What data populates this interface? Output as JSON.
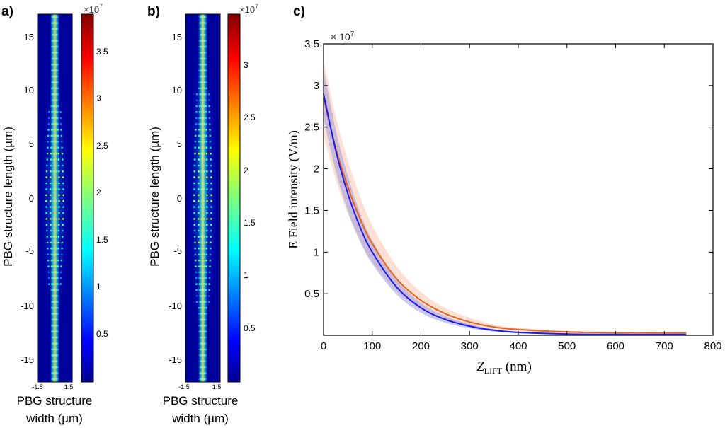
{
  "panels": {
    "a": {
      "label": "a)",
      "ylabel": "PBG structure length (µm)",
      "xlabel_line1": "PBG structure",
      "xlabel_line2": "width (µm)",
      "yticks": [
        "15",
        "10",
        "5",
        "0",
        "-5",
        "-10",
        "-15"
      ],
      "xticks": [
        "-1.5",
        "1.5"
      ],
      "colorbar_exponent": "×10",
      "colorbar_exponent_power": "7",
      "colorbar_ticks": [
        "3.5",
        "3",
        "2.5",
        "2",
        "1.5",
        "1",
        "0.5"
      ]
    },
    "b": {
      "label": "b)",
      "ylabel": "PBG structure length (µm)",
      "xlabel_line1": "PBG structure",
      "xlabel_line2": "width (µm)",
      "yticks": [
        "15",
        "10",
        "5",
        "0",
        "-5",
        "-10",
        "-15"
      ],
      "xticks": [
        "-1.5",
        "1.5"
      ],
      "colorbar_exponent": "×10",
      "colorbar_exponent_power": "7",
      "colorbar_ticks": [
        "3",
        "2.5",
        "2",
        "1.5",
        "1",
        "0.5"
      ]
    },
    "c": {
      "label": "c)",
      "exponent": "× 10",
      "exponent_power": "7",
      "ylabel": "E Field intensity (V/m)",
      "xlabel_main": "Z",
      "xlabel_sub": "LIFT",
      "xlabel_unit": " (nm)"
    }
  },
  "chart_data": [
    {
      "type": "heatmap",
      "panel": "a",
      "title": "",
      "xlabel": "PBG structure width (µm)",
      "ylabel": "PBG structure length (µm)",
      "xlim": [
        -1.5,
        1.5
      ],
      "ylim": [
        -17,
        17
      ],
      "colorbar_range": [
        0.1,
        3.9
      ],
      "colorbar_scale": "x10^7",
      "description_values": {
        "max_intensity": 3.9,
        "peak_region_y": [
          -8,
          8
        ]
      }
    },
    {
      "type": "heatmap",
      "panel": "b",
      "title": "",
      "xlabel": "PBG structure width (µm)",
      "ylabel": "PBG structure length (µm)",
      "xlim": [
        -1.5,
        1.5
      ],
      "ylim": [
        -17,
        17
      ],
      "colorbar_range": [
        0.1,
        3.5
      ],
      "colorbar_scale": "x10^7",
      "description_values": {
        "max_intensity": 3.5,
        "peak_region_y": [
          -10,
          10
        ]
      }
    },
    {
      "type": "line",
      "panel": "c",
      "title": "",
      "xlabel": "Z_LIFT (nm)",
      "ylabel": "E Field intensity (V/m)",
      "xlim": [
        0,
        800
      ],
      "ylim": [
        0,
        3.5
      ],
      "y_scale": "x10^7",
      "xticks": [
        0,
        100,
        200,
        300,
        400,
        500,
        600,
        700,
        800
      ],
      "yticks": [
        0.5,
        1,
        1.5,
        2,
        2.5,
        3,
        3.5
      ],
      "series": [
        {
          "name": "orange",
          "color": "#e8641c",
          "x": [
            0,
            25,
            50,
            75,
            100,
            150,
            200,
            250,
            300,
            350,
            400,
            500,
            600,
            745
          ],
          "y": [
            2.85,
            2.25,
            1.78,
            1.4,
            1.1,
            0.68,
            0.42,
            0.26,
            0.16,
            0.1,
            0.07,
            0.04,
            0.03,
            0.03
          ],
          "band": {
            "color": "#f4a582",
            "half_width": [
              0.45,
              0.38,
              0.32,
              0.27,
              0.22,
              0.15,
              0.1,
              0.07,
              0.05,
              0.03,
              0.02,
              0.015,
              0.01,
              0.01
            ]
          }
        },
        {
          "name": "blue",
          "color": "#1c1cf0",
          "x": [
            0,
            25,
            50,
            75,
            100,
            150,
            200,
            250,
            300,
            350,
            400,
            500,
            600,
            745
          ],
          "y": [
            2.9,
            2.22,
            1.7,
            1.3,
            1.0,
            0.58,
            0.33,
            0.19,
            0.11,
            0.06,
            0.035,
            0.015,
            0.01,
            0.01
          ],
          "band": {
            "color": "#8c8ce0",
            "half_width": [
              0.3,
              0.25,
              0.21,
              0.17,
              0.14,
              0.09,
              0.06,
              0.04,
              0.025,
              0.015,
              0.01,
              0.008,
              0.005,
              0.005
            ]
          }
        }
      ]
    }
  ]
}
